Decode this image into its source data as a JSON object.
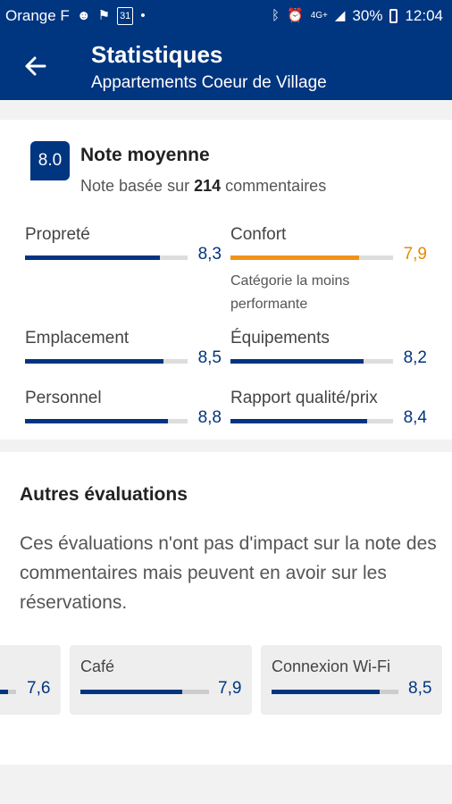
{
  "status": {
    "carrier": "Orange F",
    "calendar_day": "31",
    "network": "4G+",
    "battery": "30%",
    "time": "12:04"
  },
  "header": {
    "title": "Statistiques",
    "subtitle": "Appartements Coeur de Village"
  },
  "summary": {
    "score": "8.0",
    "title": "Note moyenne",
    "sub_prefix": "Note basée sur",
    "count": "214",
    "sub_suffix": "commentaires"
  },
  "metrics": [
    {
      "label": "Propreté",
      "value": "8,3",
      "fill": 0.83
    },
    {
      "label": "Confort",
      "value": "7,9",
      "fill": 0.79,
      "note": "Catégorie la moins performante"
    },
    {
      "label": "Emplacement",
      "value": "8,5",
      "fill": 0.85
    },
    {
      "label": "Équipements",
      "value": "8,2",
      "fill": 0.82
    },
    {
      "label": "Personnel",
      "value": "8,8",
      "fill": 0.88
    },
    {
      "label": "Rapport qualité/prix",
      "value": "8,4",
      "fill": 0.84
    }
  ],
  "other": {
    "title": "Autres évaluations",
    "description": "Ces évaluations n'ont pas d'impact sur la note des commentaires mais peuvent en avoir sur les réservations.",
    "tiles": [
      {
        "label": "",
        "value": "7,6",
        "fill": 0.76
      },
      {
        "label": "Café",
        "value": "7,9",
        "fill": 0.79
      },
      {
        "label": "Connexion Wi-Fi",
        "value": "8,5",
        "fill": 0.85
      }
    ]
  },
  "colors": {
    "brand": "#003580",
    "warning": "#f09319"
  }
}
